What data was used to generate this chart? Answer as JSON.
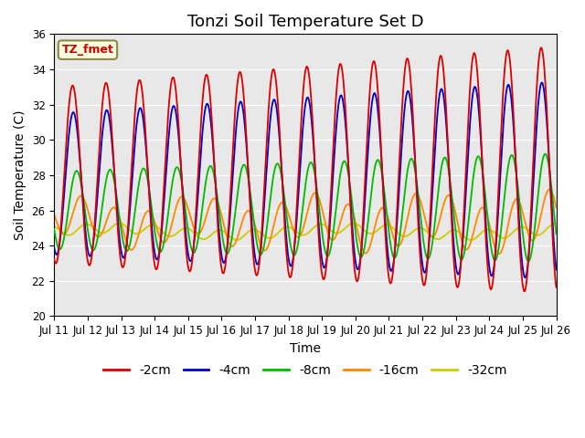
{
  "title": "Tonzi Soil Temperature Set D",
  "xlabel": "Time",
  "ylabel": "Soil Temperature (C)",
  "ylim": [
    20,
    36
  ],
  "annotation": "TZ_fmet",
  "bg_color": "#e8e8e8",
  "line_colors": {
    "-2cm": "#dd0000",
    "-4cm": "#0000cc",
    "-8cm": "#00bb00",
    "-16cm": "#ff8800",
    "-32cm": "#cccc00"
  },
  "legend_labels": [
    "-2cm",
    "-4cm",
    "-8cm",
    "-16cm",
    "-32cm"
  ],
  "x_tick_labels": [
    "Jul 11",
    "Jul 12",
    "Jul 13",
    "Jul 14",
    "Jul 15",
    "Jul 16",
    "Jul 17",
    "Jul 18",
    "Jul 19",
    "Jul 20",
    "Jul 21",
    "Jul 22",
    "Jul 23",
    "Jul 24",
    "Jul 25",
    "Jul 26"
  ],
  "title_fontsize": 13,
  "axis_fontsize": 10,
  "tick_fontsize": 8.5,
  "legend_fontsize": 10
}
